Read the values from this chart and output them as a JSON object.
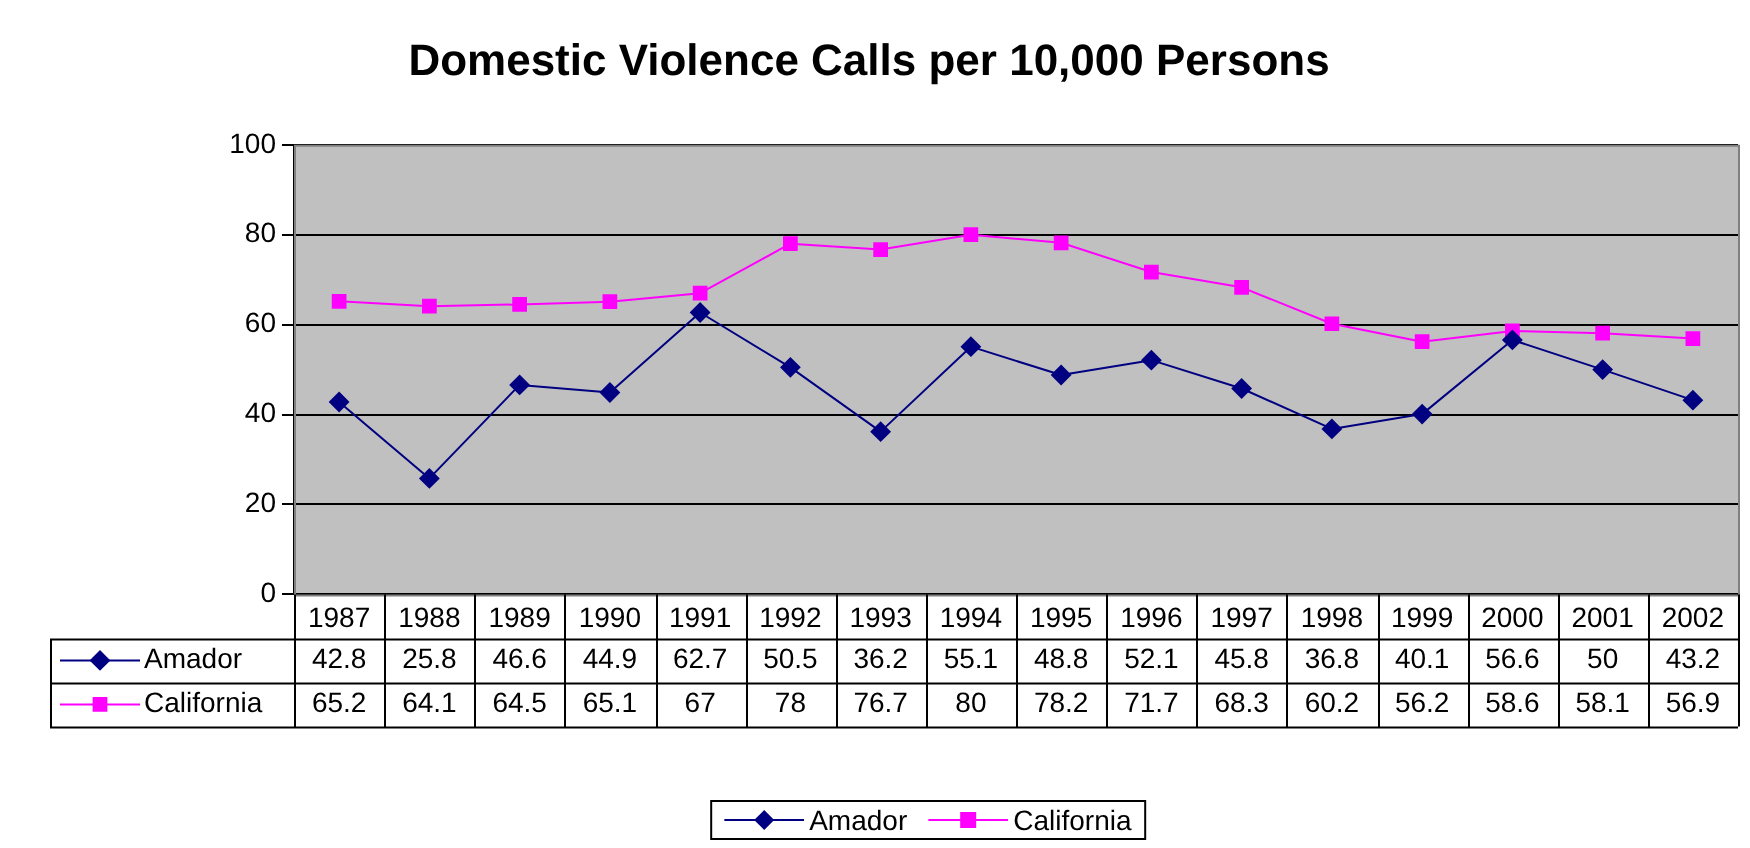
{
  "chart_data": {
    "type": "line",
    "title": "Domestic Violence Calls per 10,000 Persons",
    "categories": [
      "1987",
      "1988",
      "1989",
      "1990",
      "1991",
      "1992",
      "1993",
      "1994",
      "1995",
      "1996",
      "1997",
      "1998",
      "1999",
      "2000",
      "2001",
      "2002"
    ],
    "series": [
      {
        "name": "Amador",
        "color": "#000080",
        "marker": "diamond",
        "values": [
          42.8,
          25.8,
          46.6,
          44.9,
          62.7,
          50.5,
          36.2,
          55.1,
          48.8,
          52.1,
          45.8,
          36.8,
          40.1,
          56.6,
          50,
          43.2
        ]
      },
      {
        "name": "California",
        "color": "#ff00ff",
        "marker": "square",
        "values": [
          65.2,
          64.1,
          64.5,
          65.1,
          67,
          78,
          76.7,
          80,
          78.2,
          71.7,
          68.3,
          60.2,
          56.2,
          58.6,
          58.1,
          56.9
        ]
      }
    ],
    "ylim": [
      0,
      100
    ],
    "yticks": [
      0,
      20,
      40,
      60,
      80,
      100
    ],
    "grid": "y",
    "legend": "bottom",
    "data_labels": true
  }
}
